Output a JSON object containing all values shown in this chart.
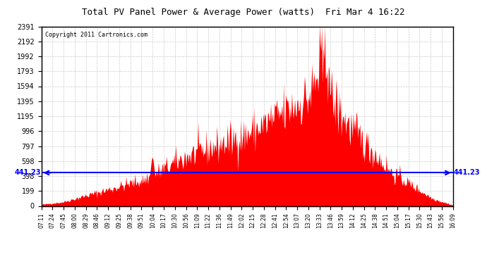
{
  "title": "Total PV Panel Power & Average Power (watts)  Fri Mar 4 16:22",
  "copyright": "Copyright 2011 Cartronics.com",
  "avg_power": 441.23,
  "y_max": 2390.7,
  "y_min": 0.0,
  "y_ticks": [
    0.0,
    199.2,
    398.4,
    597.7,
    796.9,
    996.1,
    1195.3,
    1394.6,
    1593.8,
    1793.0,
    1992.2,
    2191.5,
    2390.7
  ],
  "x_labels": [
    "07:11",
    "07:24",
    "07:45",
    "08:00",
    "08:29",
    "08:46",
    "09:12",
    "09:25",
    "09:38",
    "09:51",
    "10:04",
    "10:17",
    "10:30",
    "10:56",
    "11:09",
    "11:22",
    "11:36",
    "11:49",
    "12:02",
    "12:15",
    "12:28",
    "12:41",
    "12:54",
    "13:07",
    "13:20",
    "13:33",
    "13:46",
    "13:59",
    "14:12",
    "14:25",
    "14:38",
    "14:51",
    "15:04",
    "15:17",
    "15:30",
    "15:43",
    "15:56",
    "16:09"
  ],
  "bar_color": "#ff0000",
  "avg_line_color": "#0000ff",
  "bg_color": "#ffffff",
  "plot_bg_color": "#ffffff",
  "grid_color": "#c0c0c0",
  "title_color": "#000000",
  "border_color": "#000000"
}
